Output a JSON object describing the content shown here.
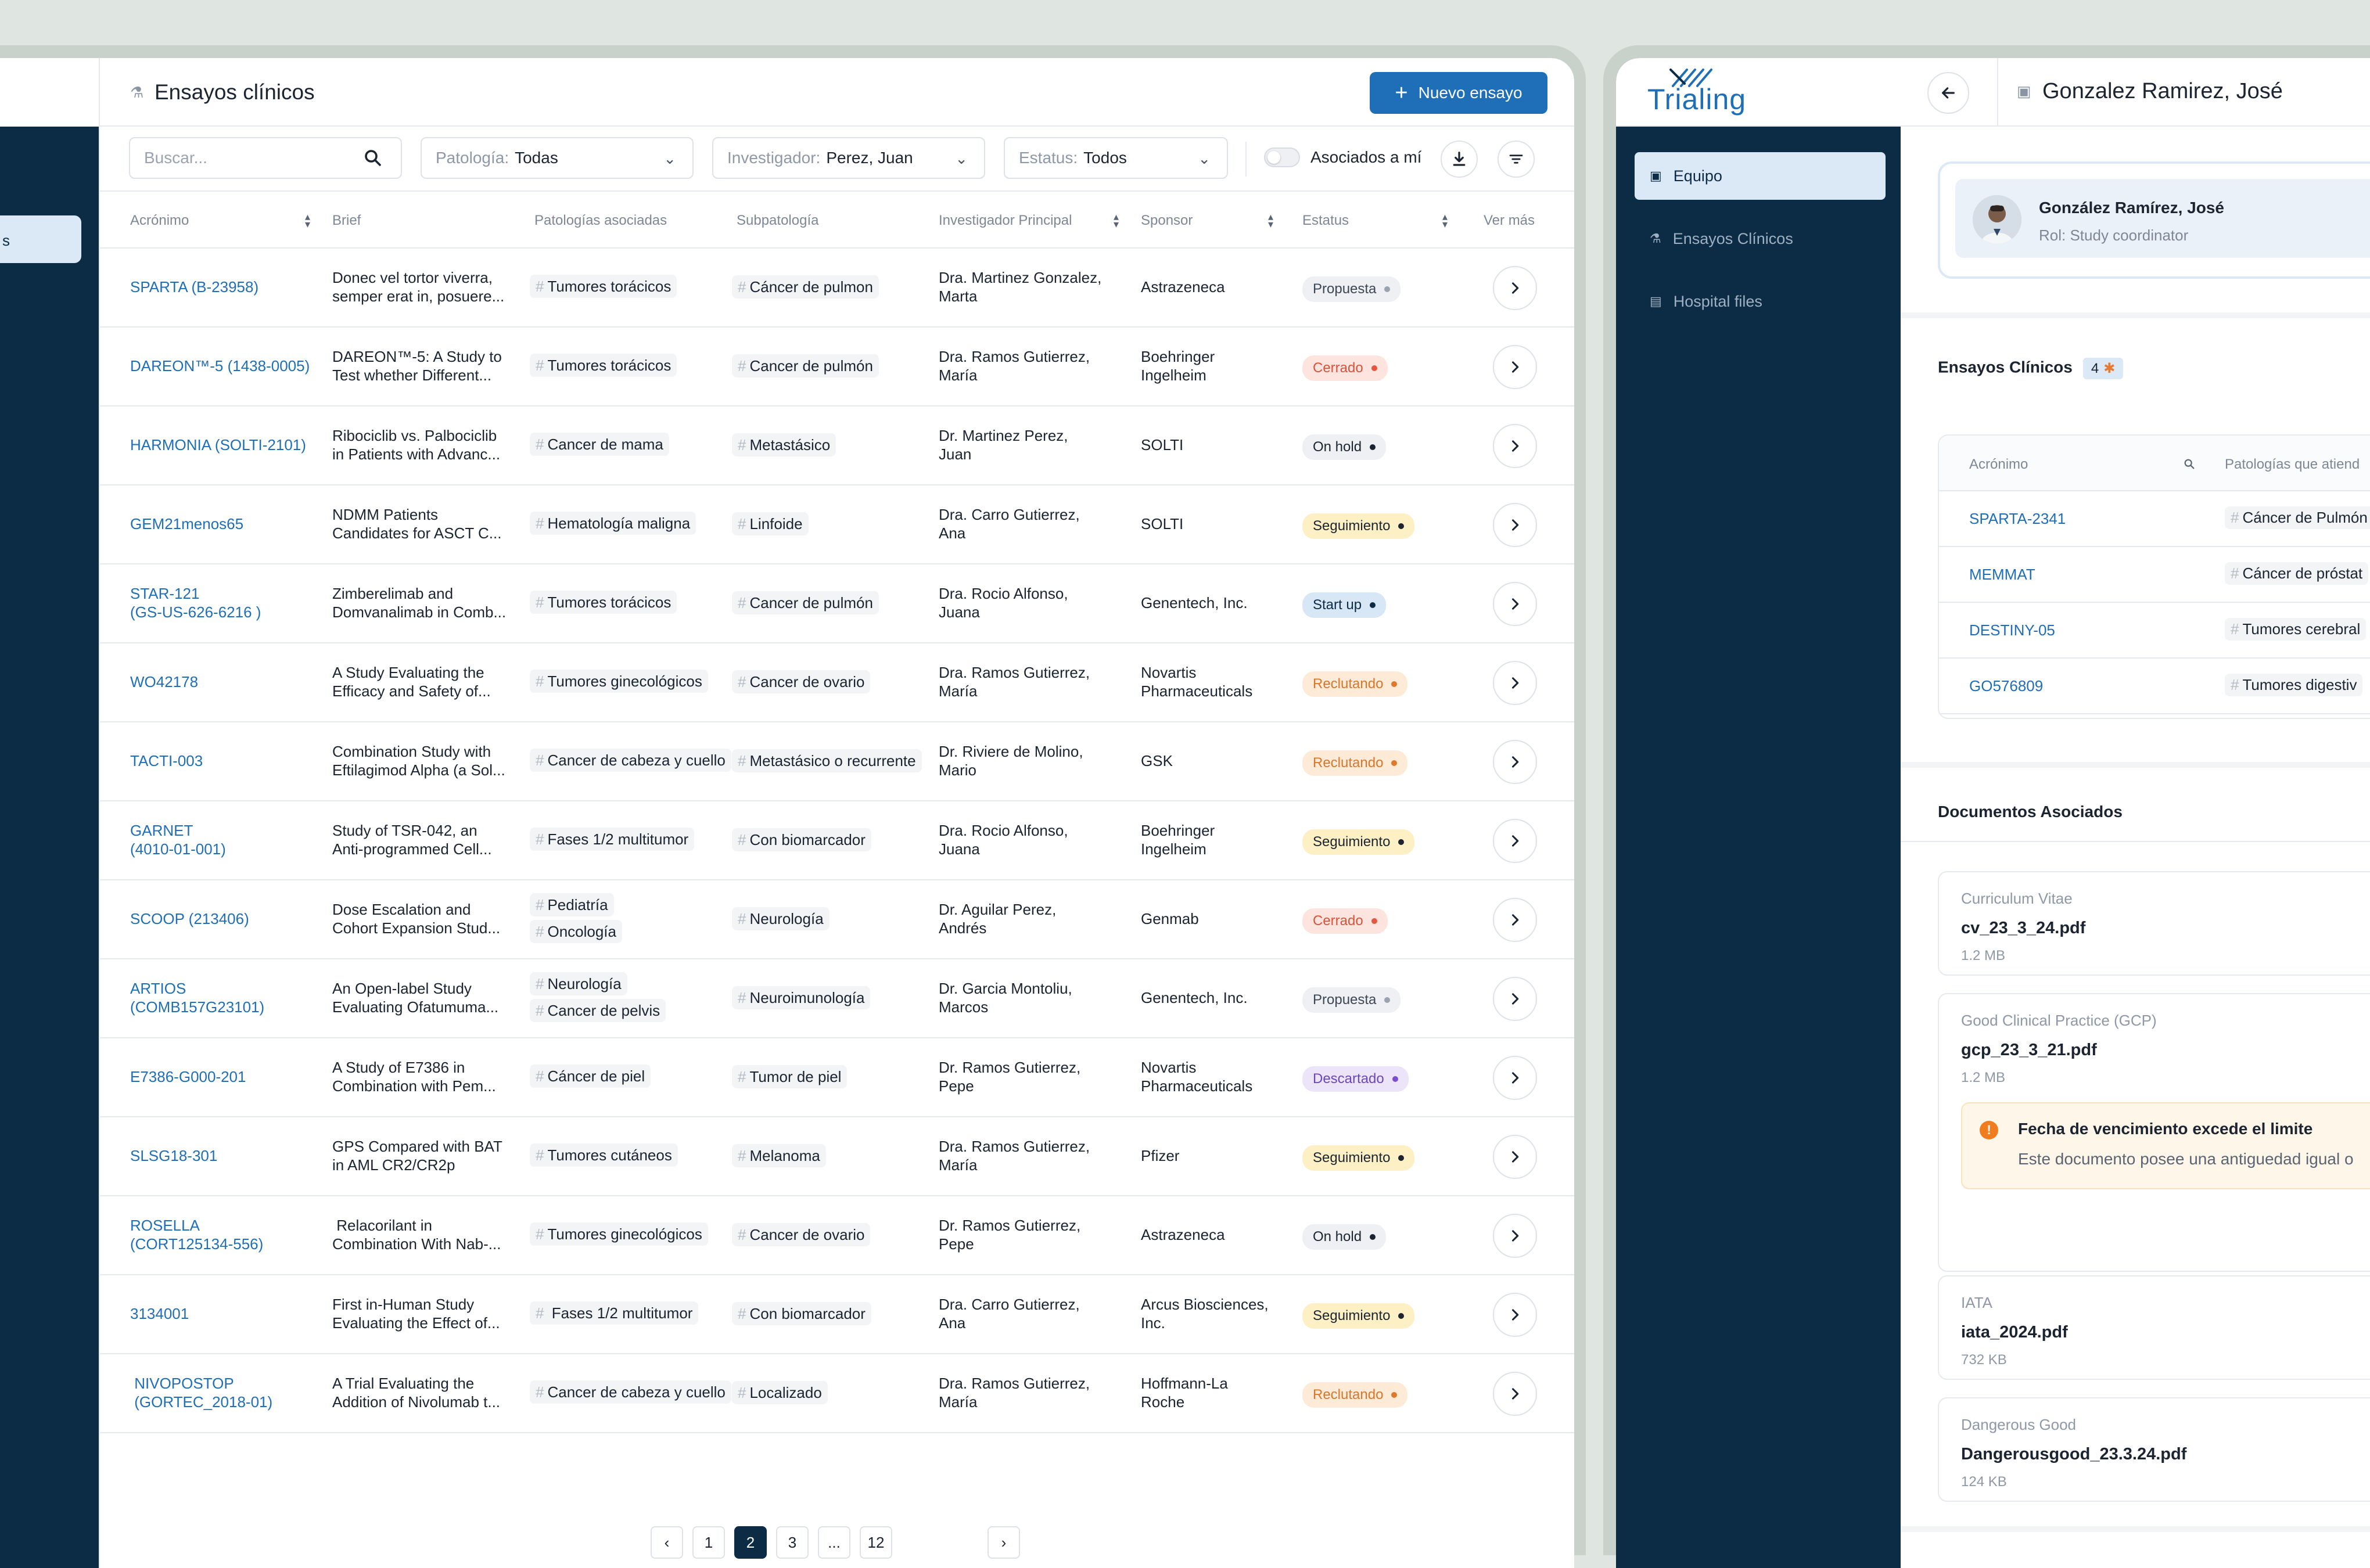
{
  "left": {
    "sidebar_active_fragment": "s",
    "title": "Ensayos clínicos",
    "new_button": "Nuevo ensayo",
    "filters": {
      "search_placeholder": "Buscar...",
      "patologia_label": "Patología:",
      "patologia_value": "Todas",
      "investigador_label": "Investigador:",
      "investigador_value": "Perez, Juan",
      "estatus_label": "Estatus:",
      "estatus_value": "Todos",
      "toggle_label": "Asociados a mí"
    },
    "columns": [
      "Acrónimo",
      "Brief",
      "Patologías asociadas",
      "Subpatología",
      "Investigador Principal",
      "Sponsor",
      "Estatus",
      "Ver más"
    ],
    "rows": [
      {
        "acr": [
          "SPARTA (B-23958)"
        ],
        "brief": [
          "Donec vel tortor viverra,",
          "semper erat in, posuere..."
        ],
        "pat": [
          "Tumores torácicos"
        ],
        "sub": "Cáncer de pulmon",
        "inv": [
          "Dra. Martinez Gonzalez,",
          "Marta"
        ],
        "sponsor": [
          "Astrazeneca"
        ],
        "status": "Propuesta"
      },
      {
        "acr": [
          "DAREON™-5 (1438-0005)"
        ],
        "brief": [
          "DAREON™-5: A Study to",
          "Test whether Different..."
        ],
        "pat": [
          "Tumores torácicos"
        ],
        "sub": "Cancer de pulmón",
        "inv": [
          "Dra. Ramos Gutierrez,",
          "María"
        ],
        "sponsor": [
          "Boehringer",
          "Ingelheim"
        ],
        "status": "Cerrado"
      },
      {
        "acr": [
          "HARMONIA (SOLTI-2101)"
        ],
        "brief": [
          "Ribociclib vs. Palbociclib",
          "in Patients with Advanc..."
        ],
        "pat": [
          "Cancer de mama"
        ],
        "sub": "Metastásico",
        "inv": [
          "Dr. Martinez Perez,",
          "Juan"
        ],
        "sponsor": [
          "SOLTI"
        ],
        "status": "On hold"
      },
      {
        "acr": [
          "GEM21menos65"
        ],
        "brief": [
          "NDMM Patients",
          "Candidates for ASCT C..."
        ],
        "pat": [
          "Hematología maligna"
        ],
        "sub": "Linfoide",
        "inv": [
          "Dra. Carro Gutierrez,",
          "Ana"
        ],
        "sponsor": [
          "SOLTI"
        ],
        "status": "Seguimiento"
      },
      {
        "acr": [
          "STAR-121",
          "(GS-US-626-6216 )"
        ],
        "brief": [
          "Zimberelimab and",
          "Domvanalimab in Comb..."
        ],
        "pat": [
          "Tumores torácicos"
        ],
        "sub": "Cancer de pulmón",
        "inv": [
          "Dra. Rocio Alfonso,",
          "Juana"
        ],
        "sponsor": [
          "Genentech, Inc."
        ],
        "status": "Start up"
      },
      {
        "acr": [
          "WO42178"
        ],
        "brief": [
          "A Study Evaluating the",
          "Efficacy and Safety of..."
        ],
        "pat": [
          "Tumores ginecológicos"
        ],
        "sub": "Cancer de ovario",
        "inv": [
          "Dra. Ramos Gutierrez,",
          "María"
        ],
        "sponsor": [
          "Novartis",
          "Pharmaceuticals"
        ],
        "status": "Reclutando"
      },
      {
        "acr": [
          "TACTI-003"
        ],
        "brief": [
          "Combination Study with",
          "Eftilagimod Alpha (a Sol..."
        ],
        "pat": [
          "Cancer de cabeza y cuello"
        ],
        "sub": "Metastásico o recurrente",
        "inv": [
          "Dr. Riviere de Molino,",
          "Mario"
        ],
        "sponsor": [
          "GSK"
        ],
        "status": "Reclutando"
      },
      {
        "acr": [
          "GARNET",
          "(4010-01-001)"
        ],
        "brief": [
          "Study of TSR-042, an",
          "Anti-programmed Cell..."
        ],
        "pat": [
          "Fases 1/2 multitumor"
        ],
        "sub": "Con biomarcador",
        "inv": [
          "Dra. Rocio Alfonso,",
          "Juana"
        ],
        "sponsor": [
          "Boehringer",
          "Ingelheim"
        ],
        "status": "Seguimiento"
      },
      {
        "acr": [
          "SCOOP (213406)"
        ],
        "brief": [
          "Dose Escalation and",
          "Cohort Expansion Stud..."
        ],
        "pat": [
          "Pediatría",
          "Oncología"
        ],
        "sub": "Neurología",
        "inv": [
          "Dr. Aguilar Perez,",
          "Andrés"
        ],
        "sponsor": [
          "Genmab"
        ],
        "status": "Cerrado"
      },
      {
        "acr": [
          "ARTIOS",
          "(COMB157G23101)"
        ],
        "brief": [
          "An Open-label Study",
          "Evaluating Ofatumuma..."
        ],
        "pat": [
          "Neurología",
          "Cancer de pelvis"
        ],
        "sub": "Neuroimunología",
        "inv": [
          "Dr. Garcia Montoliu,",
          "Marcos"
        ],
        "sponsor": [
          "Genentech, Inc."
        ],
        "status": "Propuesta"
      },
      {
        "acr": [
          "E7386-G000-201"
        ],
        "brief": [
          "A Study of E7386 in",
          "Combination with Pem..."
        ],
        "pat": [
          "Cáncer de piel"
        ],
        "sub": "Tumor de piel",
        "inv": [
          "Dr. Ramos Gutierrez,",
          "Pepe"
        ],
        "sponsor": [
          "Novartis",
          "Pharmaceuticals"
        ],
        "status": "Descartado"
      },
      {
        "acr": [
          "SLSG18-301"
        ],
        "brief": [
          "GPS Compared with BAT",
          "in AML CR2/CR2p"
        ],
        "pat": [
          "Tumores cutáneos"
        ],
        "sub": "Melanoma",
        "inv": [
          "Dra. Ramos Gutierrez,",
          "María"
        ],
        "sponsor": [
          "Pfizer"
        ],
        "status": "Seguimiento"
      },
      {
        "acr": [
          "ROSELLA",
          "(CORT125134-556)"
        ],
        "brief": [
          " Relacorilant in",
          "Combination With Nab-..."
        ],
        "pat": [
          "Tumores ginecológicos"
        ],
        "sub": "Cancer de ovario",
        "inv": [
          "Dr. Ramos Gutierrez,",
          "Pepe"
        ],
        "sponsor": [
          "Astrazeneca"
        ],
        "status": "On hold"
      },
      {
        "acr": [
          "3134001"
        ],
        "brief": [
          "First in-Human Study",
          "Evaluating the Effect of..."
        ],
        "pat": [
          " Fases 1/2 multitumor"
        ],
        "sub": "Con biomarcador",
        "inv": [
          "Dra. Carro Gutierrez,",
          "Ana"
        ],
        "sponsor": [
          "Arcus Biosciences,",
          "Inc."
        ],
        "status": "Seguimiento"
      },
      {
        "acr": [
          " NIVOPOSTOP",
          " (GORTEC_2018-01)"
        ],
        "brief": [
          "A Trial Evaluating the",
          "Addition of Nivolumab t..."
        ],
        "pat": [
          "Cancer de cabeza y cuello"
        ],
        "sub": "Localizado",
        "inv": [
          "Dra. Ramos Gutierrez,",
          "María"
        ],
        "sponsor": [
          "Hoffmann-La",
          "Roche"
        ],
        "status": "Reclutando"
      }
    ],
    "pagination": {
      "pages": [
        "1",
        "2",
        "3",
        "...",
        "12"
      ],
      "current": "2"
    }
  },
  "status_colors": {
    "Propuesta": {
      "bg": "#eef0f3",
      "fg": "#3d4653",
      "dot": "#9aa3af"
    },
    "Cerrado": {
      "bg": "#fde4df",
      "fg": "#d9533b",
      "dot": "#e2573e"
    },
    "On hold": {
      "bg": "#eef0f3",
      "fg": "#1b2430",
      "dot": "#1b2430"
    },
    "Seguimiento": {
      "bg": "#fdf0c4",
      "fg": "#1b2430",
      "dot": "#1b2430"
    },
    "Start up": {
      "bg": "#d7e7f6",
      "fg": "#0c2c45",
      "dot": "#0c2c45"
    },
    "Reclutando": {
      "bg": "#fdebd7",
      "fg": "#d9762b",
      "dot": "#e0772a"
    },
    "Descartado": {
      "bg": "#ece4f8",
      "fg": "#6b46c1",
      "dot": "#7c4fd1"
    }
  },
  "right": {
    "logo": "Trialing",
    "nav": [
      {
        "label": "Equipo",
        "icon": "id-badge-icon",
        "active": true
      },
      {
        "label": "Ensayos Clínicos",
        "icon": "flask-icon",
        "active": false
      },
      {
        "label": "Hospital files",
        "icon": "file-icon",
        "active": false
      }
    ],
    "title": "Gonzalez Ramirez, José",
    "profile": {
      "name": "González Ramírez, José",
      "role": "Rol: Study coordinator"
    },
    "ensayos_title": "Ensayos Clínicos",
    "ensayos_count": "4",
    "table_columns": [
      "Acrónimo",
      "Patologías que atiend"
    ],
    "table_rows": [
      {
        "acr": "SPARTA-2341",
        "pat": "Cáncer de Pulmón"
      },
      {
        "acr": "MEMMAT",
        "pat": "Cáncer de próstat"
      },
      {
        "acr": "DESTINY-05",
        "pat": "Tumores cerebral"
      },
      {
        "acr": "GO576809",
        "pat": "Tumores digestiv"
      }
    ],
    "docs_title": "Documentos Asociados",
    "docs": [
      {
        "cat": "Curriculum Vitae",
        "file": "cv_23_3_24.pdf",
        "size": "1.2 MB"
      },
      {
        "cat": "Good Clinical Practice (GCP)",
        "file": "gcp_23_3_21.pdf",
        "size": "1.2 MB"
      },
      {
        "cat": "IATA",
        "file": "iata_2024.pdf",
        "size": "732 KB"
      },
      {
        "cat": "Dangerous Good",
        "file": "Dangerousgood_23.3.24.pdf",
        "size": "124 KB"
      }
    ],
    "warning": {
      "title": "Fecha de vencimiento excede el limite",
      "text": "Este documento posee una antiguedad igual o"
    }
  }
}
